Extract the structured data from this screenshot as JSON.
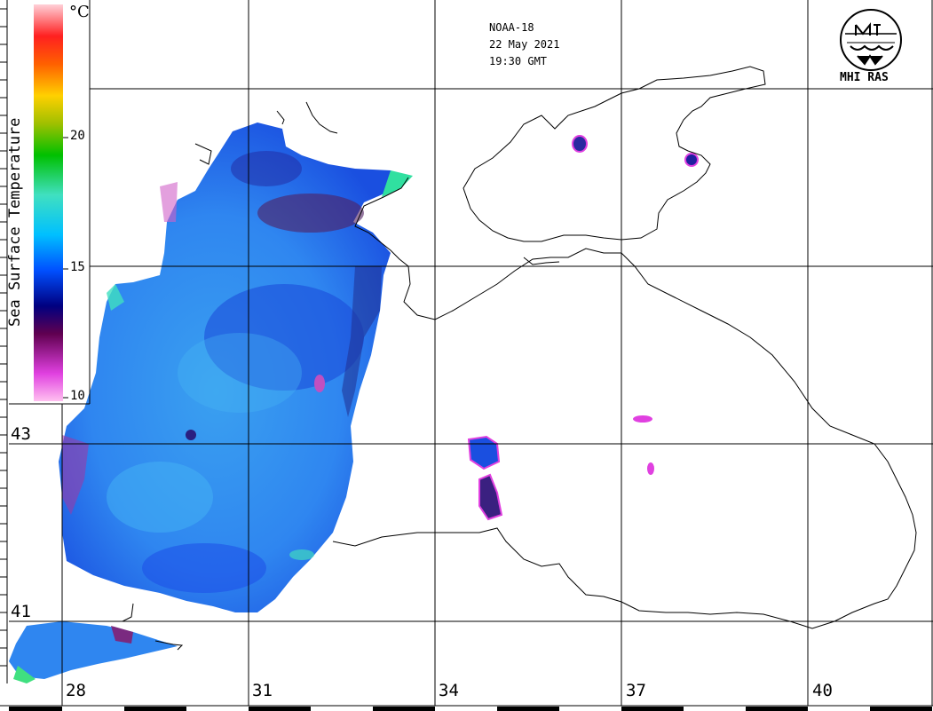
{
  "header": {
    "satellite": "NOAA-18",
    "date": "22 May 2021",
    "time": "19:30 GMT"
  },
  "logo": {
    "text": "MHI RAS",
    "icon": "mhi-ras-logo-icon"
  },
  "colorbar": {
    "title": "Sea Surface Temperature",
    "unit": "°C",
    "ticks": [
      {
        "label": "20",
        "value": 20
      },
      {
        "label": "15",
        "value": 15
      },
      {
        "label": "10",
        "value": 10
      }
    ],
    "range": [
      10,
      25
    ],
    "colors": [
      "#ffc0f0",
      "#e040e0",
      "#600050",
      "#000080",
      "#0050ff",
      "#00c0ff",
      "#40e0c0",
      "#00c000",
      "#a0c000",
      "#ffd000",
      "#ff6000",
      "#ff2020",
      "#ffd0d8"
    ]
  },
  "axes": {
    "longitude_labels": [
      "28",
      "31",
      "34",
      "37",
      "40"
    ],
    "latitude_labels": [
      "43",
      "41"
    ]
  },
  "colors": {
    "coastline": "#000000",
    "grid": "#000000",
    "sst_blue": "#1a5cf0",
    "sst_cyan": "#3aa8f0",
    "sst_dark": "#2020a0",
    "sst_magenta": "#e040e0"
  }
}
